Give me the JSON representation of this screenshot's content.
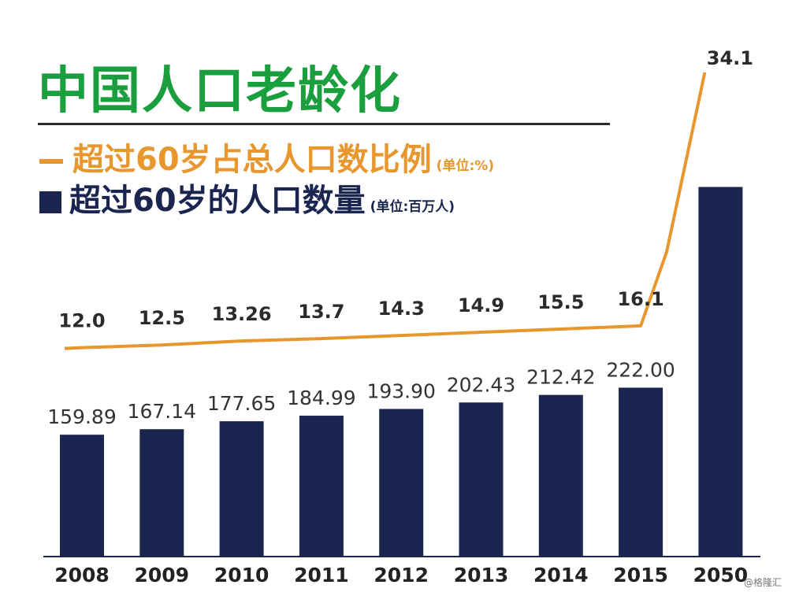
{
  "title": "中国人口老龄化",
  "legend": {
    "line_label": "超过60岁占总人口数比例",
    "line_unit": "(单位:%)",
    "bar_label": "超过60岁的人口数量",
    "bar_unit": "(单位:百万人)"
  },
  "watermark": "@格隆汇",
  "colors": {
    "title": "#1b9e3e",
    "line": "#e8962e",
    "bar": "#1a2550"
  },
  "chart_data": {
    "type": "bar",
    "categories": [
      "2008",
      "2009",
      "2010",
      "2011",
      "2012",
      "2013",
      "2014",
      "2015",
      "2050"
    ],
    "series": [
      {
        "type": "bar",
        "values": [
          159.89,
          167.14,
          177.65,
          184.99,
          193.9,
          202.43,
          212.42,
          222.0,
          487
        ],
        "labels": [
          "159.89",
          "167.14",
          "177.65",
          "184.99",
          "193.90",
          "202.43",
          "212.42",
          "222.00",
          ""
        ]
      },
      {
        "type": "line",
        "values": [
          12.0,
          12.5,
          13.26,
          13.7,
          14.3,
          14.9,
          15.5,
          16.1,
          34.1
        ],
        "labels": [
          "12.0",
          "12.5",
          "13.26",
          "13.7",
          "14.3",
          "14.9",
          "15.5",
          "16.1",
          "34.1"
        ]
      }
    ]
  }
}
